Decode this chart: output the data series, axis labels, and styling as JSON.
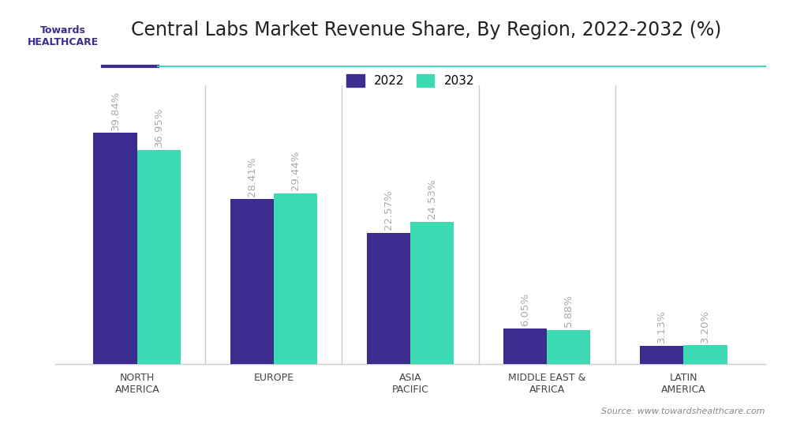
{
  "title": "Central Labs Market Revenue Share, By Region, 2022-2032 (%)",
  "categories": [
    "NORTH\nAMERICA",
    "EUROPE",
    "ASIA\nPACIFIC",
    "MIDDLE EAST &\nAFRICA",
    "LATIN\nAMERICA"
  ],
  "values_2022": [
    39.84,
    28.41,
    22.57,
    6.05,
    3.13
  ],
  "values_2032": [
    36.95,
    29.44,
    24.53,
    5.88,
    3.2
  ],
  "labels_2022": [
    "39.84%",
    "28.41%",
    "22.57%",
    "6.05%",
    "3.13%"
  ],
  "labels_2032": [
    "36.95%",
    "29.44%",
    "24.53%",
    "5.88%",
    "3.20%"
  ],
  "color_2022": "#3a2d8f",
  "color_2032": "#3dd9b3",
  "legend_2022": "2022",
  "legend_2032": "2032",
  "bar_width": 0.32,
  "ylim": [
    0,
    48
  ],
  "background_color": "#ffffff",
  "grid_color": "#e0e0e0",
  "label_color": "#aaaaaa",
  "title_color": "#222222",
  "source_text": "Source: www.towardshealthcare.com",
  "separator_color": "#cccccc",
  "accent_line_color_dark": "#3a2d8f",
  "accent_line_color_teal": "#3dd9b3",
  "title_fontsize": 17,
  "label_fontsize": 9.5,
  "tick_fontsize": 9,
  "legend_fontsize": 11
}
